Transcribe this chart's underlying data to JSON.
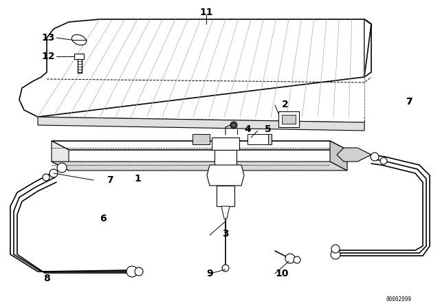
{
  "bg_color": "#ffffff",
  "line_color": "#000000",
  "fig_width": 6.4,
  "fig_height": 4.48,
  "dpi": 100,
  "watermark": "00002099"
}
